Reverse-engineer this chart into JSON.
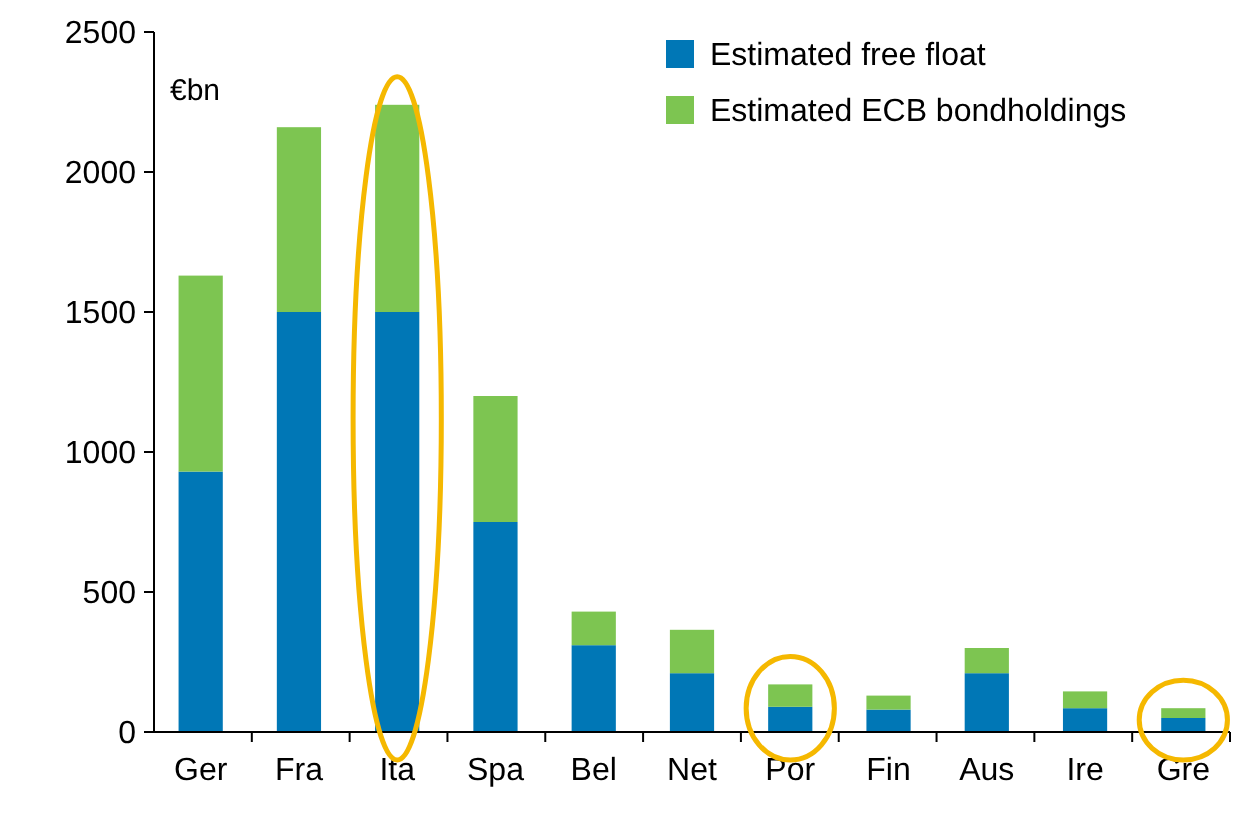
{
  "chart_data": {
    "type": "bar",
    "stacked": true,
    "ylabel": "€bn",
    "categories": [
      "Ger",
      "Fra",
      "Ita",
      "Spa",
      "Bel",
      "Net",
      "Por",
      "Fin",
      "Aus",
      "Ire",
      "Gre"
    ],
    "series": [
      {
        "name": "Estimated free float",
        "color": "#0077b6",
        "values": [
          930,
          1500,
          1500,
          750,
          310,
          210,
          90,
          80,
          210,
          85,
          50
        ]
      },
      {
        "name": "Estimated ECB bondholdings",
        "color": "#7dc551",
        "values": [
          700,
          660,
          740,
          450,
          120,
          155,
          80,
          50,
          90,
          60,
          35
        ]
      }
    ],
    "ylim": [
      0,
      2500
    ],
    "yticks": [
      0,
      500,
      1000,
      1500,
      2000,
      2500
    ],
    "legend": "top right"
  }
}
